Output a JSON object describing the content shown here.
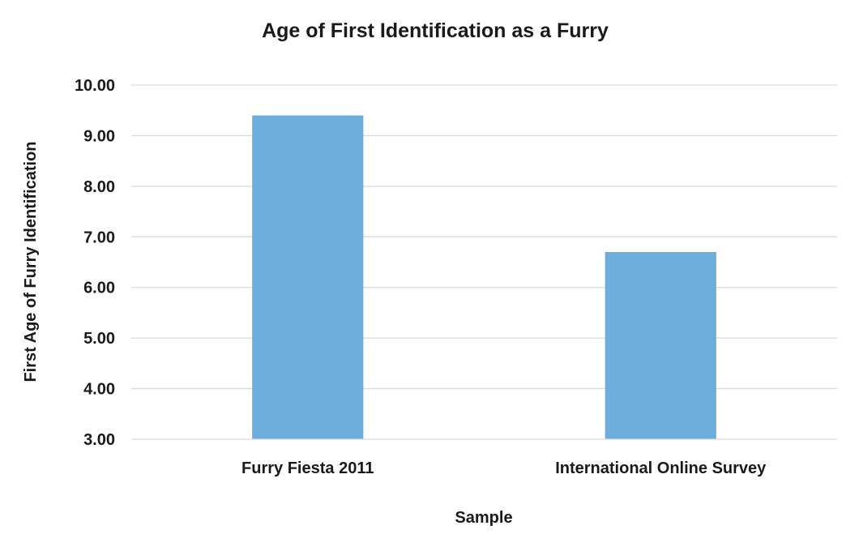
{
  "chart_data": {
    "type": "bar",
    "title": "Age of First Identification as a Furry",
    "xlabel": "Sample",
    "ylabel": "First Age of Furry Identification",
    "categories": [
      "Furry Fiesta 2011",
      "International Online Survey"
    ],
    "values": [
      9.4,
      6.7
    ],
    "ylim": [
      3,
      10
    ],
    "yticks": [
      "3.00",
      "4.00",
      "5.00",
      "6.00",
      "7.00",
      "8.00",
      "9.00",
      "10.00"
    ],
    "grid": true,
    "legend": "none",
    "bar_color": "#6daddc"
  }
}
